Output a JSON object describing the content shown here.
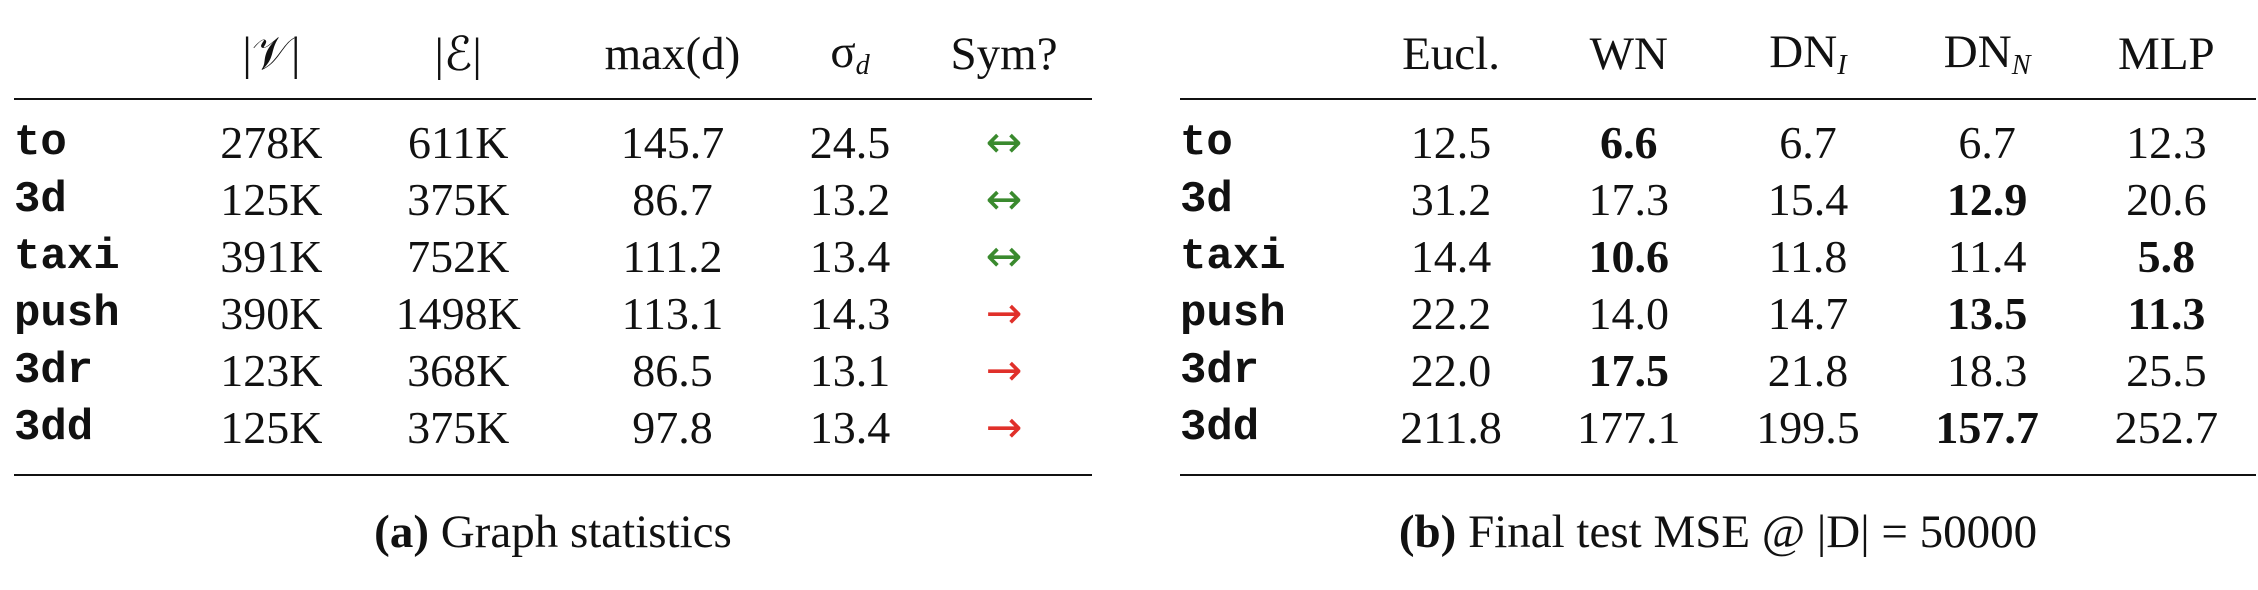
{
  "table_a": {
    "headers": [
      {
        "id": "blank",
        "text": ""
      },
      {
        "id": "vertices",
        "text": "|𝒱|"
      },
      {
        "id": "edges",
        "text": "|ℰ|"
      },
      {
        "id": "maxd",
        "text": "max(d)"
      },
      {
        "id": "sigma",
        "text": "σ",
        "sub": "d"
      },
      {
        "id": "sym",
        "text": "Sym?"
      }
    ],
    "rows": [
      {
        "name": "to",
        "cells": [
          "278K",
          "611K",
          "145.7",
          "24.5"
        ],
        "sym": "↔",
        "sym_color": "#3a8a2e"
      },
      {
        "name": "3d",
        "cells": [
          "125K",
          "375K",
          "86.7",
          "13.2"
        ],
        "sym": "↔",
        "sym_color": "#3a8a2e"
      },
      {
        "name": "taxi",
        "cells": [
          "391K",
          "752K",
          "111.2",
          "13.4"
        ],
        "sym": "↔",
        "sym_color": "#3a8a2e"
      },
      {
        "name": "push",
        "cells": [
          "390K",
          "1498K",
          "113.1",
          "14.3"
        ],
        "sym": "→",
        "sym_color": "#e0302a"
      },
      {
        "name": "3dr",
        "cells": [
          "123K",
          "368K",
          "86.5",
          "13.1"
        ],
        "sym": "→",
        "sym_color": "#e0302a"
      },
      {
        "name": "3dd",
        "cells": [
          "125K",
          "375K",
          "97.8",
          "13.4"
        ],
        "sym": "→",
        "sym_color": "#e0302a"
      }
    ],
    "caption_label": "(a)",
    "caption_text": "Graph statistics"
  },
  "table_b": {
    "headers": [
      {
        "id": "blank",
        "text": ""
      },
      {
        "id": "eucl",
        "text": "Eucl."
      },
      {
        "id": "wn",
        "text": "WN"
      },
      {
        "id": "dni",
        "text": "DN",
        "sub": "I"
      },
      {
        "id": "dnn",
        "text": "DN",
        "sub": "N"
      },
      {
        "id": "mlp",
        "text": "MLP"
      }
    ],
    "rows": [
      {
        "name": "to",
        "cells": [
          "12.5",
          "6.6",
          "6.7",
          "6.7",
          "12.3"
        ],
        "bold": [
          false,
          true,
          false,
          false,
          false
        ]
      },
      {
        "name": "3d",
        "cells": [
          "31.2",
          "17.3",
          "15.4",
          "12.9",
          "20.6"
        ],
        "bold": [
          false,
          false,
          false,
          true,
          false
        ]
      },
      {
        "name": "taxi",
        "cells": [
          "14.4",
          "10.6",
          "11.8",
          "11.4",
          "5.8"
        ],
        "bold": [
          false,
          true,
          false,
          false,
          true
        ]
      },
      {
        "name": "push",
        "cells": [
          "22.2",
          "14.0",
          "14.7",
          "13.5",
          "11.3"
        ],
        "bold": [
          false,
          false,
          false,
          true,
          true
        ]
      },
      {
        "name": "3dr",
        "cells": [
          "22.0",
          "17.5",
          "21.8",
          "18.3",
          "25.5"
        ],
        "bold": [
          false,
          true,
          false,
          false,
          false
        ]
      },
      {
        "name": "3dd",
        "cells": [
          "211.8",
          "177.1",
          "199.5",
          "157.7",
          "252.7"
        ],
        "bold": [
          false,
          false,
          false,
          true,
          false
        ]
      }
    ],
    "caption_label": "(b)",
    "caption_text": "Final test MSE @ |D| = 50000"
  }
}
